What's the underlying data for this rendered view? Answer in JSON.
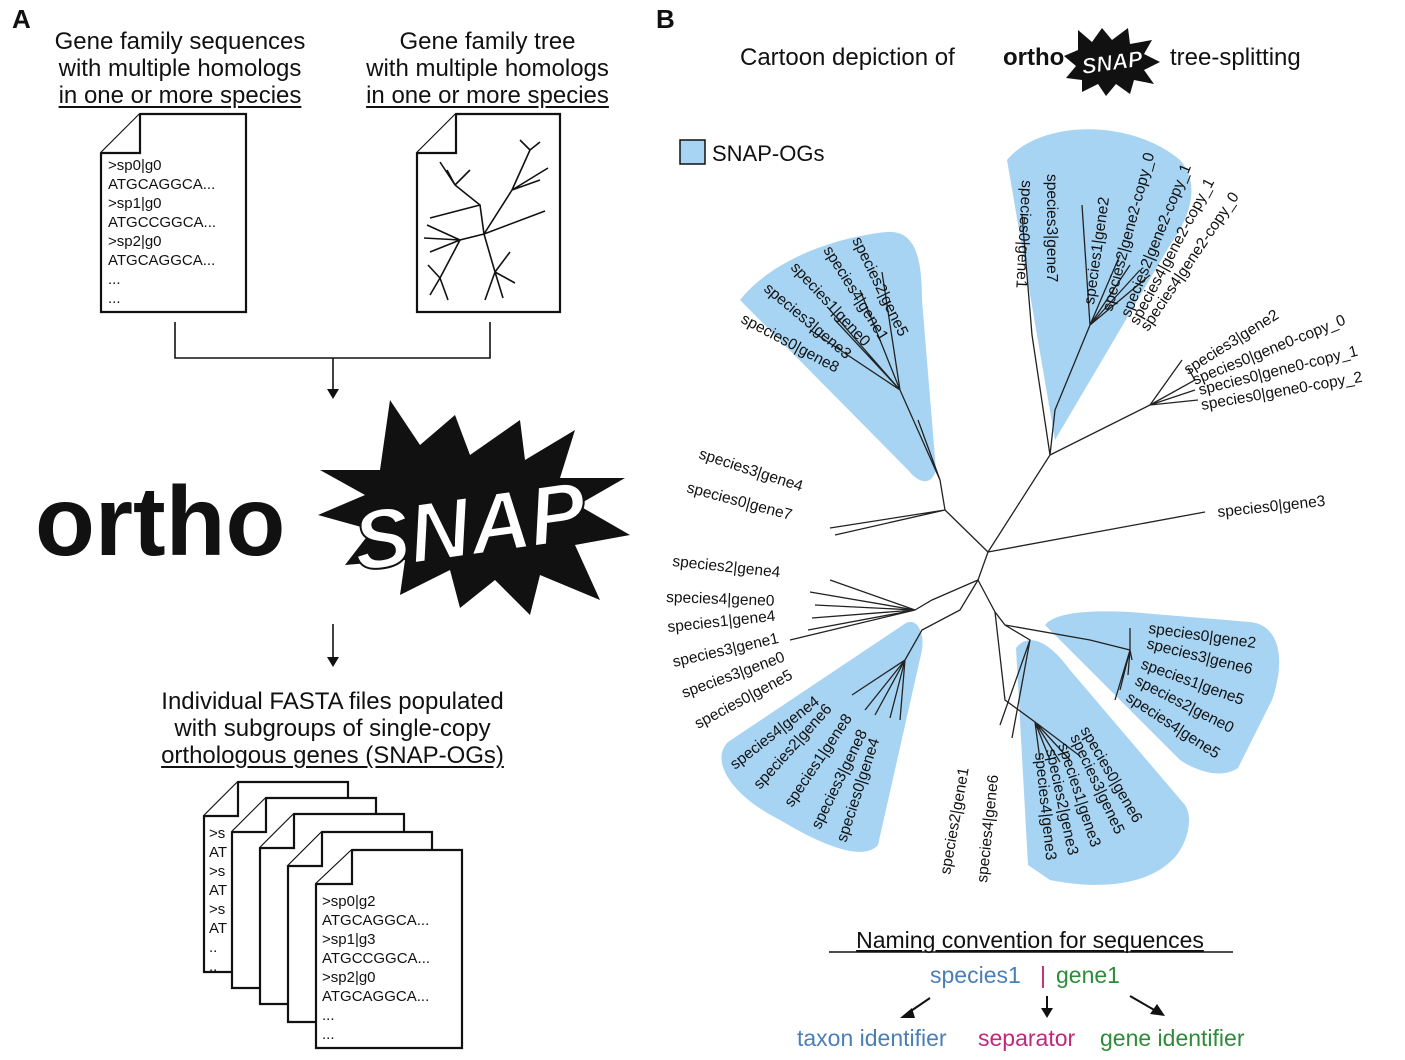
{
  "panels": {
    "a": "A",
    "b": "B"
  },
  "left": {
    "sequences_heading": [
      "Gene family sequences",
      "with multiple homologs",
      "in one or more species"
    ],
    "tree_heading": [
      "Gene family tree",
      "with multiple homologs",
      "in one or more species"
    ],
    "input_fasta": [
      ">sp0|g0",
      "ATGCAGGCA...",
      ">sp1|g0",
      "ATGCCGGCA...",
      ">sp2|g0",
      "ATGCAGGCA...",
      "...",
      "..."
    ],
    "logo_prefix": "ortho",
    "logo_word": "SNAP",
    "output_heading": [
      "Individual FASTA files populated",
      "with subgroups of single-copy",
      "orthologous genes (SNAP-OGs)"
    ],
    "stack_fragments": [
      ">s",
      "AT",
      ">s",
      "AT",
      ">s",
      "AT",
      "..",
      ".."
    ],
    "output_fasta": [
      ">sp0|g2",
      "ATGCAGGCA...",
      ">sp1|g3",
      "ATGCCGGCA...",
      ">sp2|g0",
      "ATGCAGGCA...",
      "...",
      "..."
    ]
  },
  "right": {
    "title_before": "Cartoon depiction of",
    "title_logo_prefix": "ortho",
    "title_logo_word": "SNAP",
    "title_after": "tree-splitting",
    "legend_label": "SNAP-OGs",
    "colors": {
      "clade_fill": "#a8d4f3",
      "taxon": "#4a7fb5",
      "separator": "#c0287a",
      "gene": "#2e8b3a"
    },
    "leaves": {
      "top_left_clade": [
        "species2|gene5",
        "species4|gene1",
        "species1|gene0",
        "species3|gene3",
        "species0|gene8"
      ],
      "top_clade_a": [
        "species0|gene1",
        "species3|gene7"
      ],
      "top_clade_b": [
        "species1|gene2",
        "species2|gene2-copy_0",
        "species2|gene2-copy_1",
        "species4|gene2-copy_1",
        "species4|gene2-copy_0"
      ],
      "right_top": [
        "species3|gene2",
        "species0|gene0-copy_0",
        "species0|gene0-copy_1",
        "species0|gene0-copy_2"
      ],
      "right_single": [
        "species0|gene3"
      ],
      "right_clade": [
        "species0|gene2",
        "species3|gene6",
        "species1|gene5",
        "species2|gene0",
        "species4|gene5"
      ],
      "bottom_clade": [
        "species0|gene6",
        "species3|gene5",
        "species1|gene3",
        "species2|gene3",
        "species4|gene3"
      ],
      "bottom_pair": [
        "species2|gene1",
        "species4|gene6"
      ],
      "bottom_left_clade": [
        "species4|gene4",
        "species2|gene6",
        "species1|gene8",
        "species3|gene8",
        "species0|gene4"
      ],
      "left_group": [
        "species2|gene4",
        "species4|gene0",
        "species1|gene4",
        "species3|gene1",
        "species3|gene0",
        "species0|gene5"
      ],
      "left_pair": [
        "species3|gene4",
        "species0|gene7"
      ]
    },
    "naming_heading": "Naming convention for sequences",
    "naming_taxon": "species1",
    "naming_sep": "|",
    "naming_gene": "gene1",
    "naming_labels": {
      "taxon": "taxon identifier",
      "separator": "separator",
      "gene": "gene identifier"
    }
  }
}
